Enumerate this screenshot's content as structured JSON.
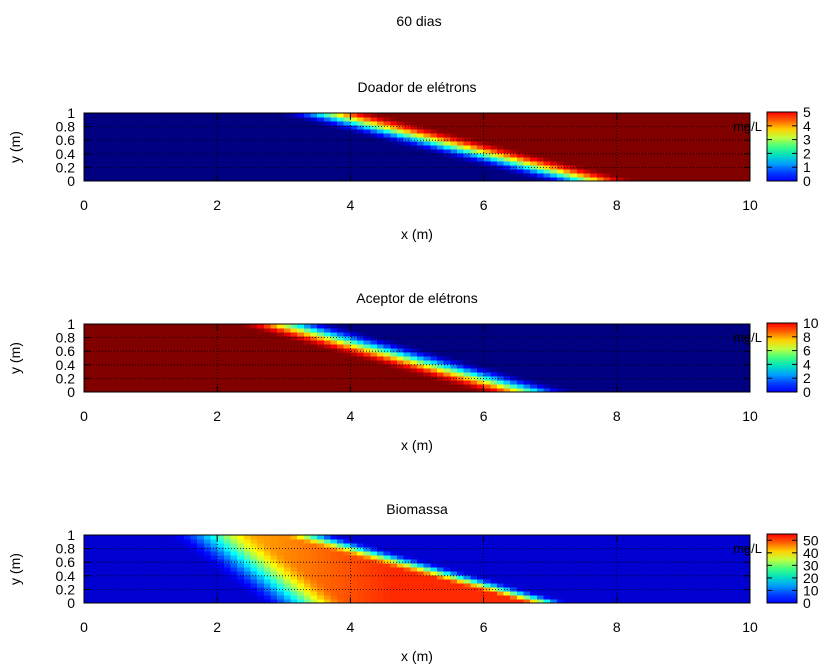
{
  "figure": {
    "title": "60 dias"
  },
  "chart_data": [
    {
      "type": "heatmap",
      "title": "Doador de elétrons",
      "xlabel": "x (m)",
      "ylabel": "y (m)",
      "xlim": [
        0,
        10
      ],
      "ylim": [
        0,
        1
      ],
      "xticks": [
        "0",
        "2",
        "4",
        "6",
        "8",
        "10"
      ],
      "yticks": [
        "0",
        "0.2",
        "0.4",
        "0.6",
        "0.8",
        "1"
      ],
      "colorbar": {
        "label": "mg/L",
        "range": [
          0,
          5
        ],
        "ticks": [
          "0",
          "1",
          "2",
          "3",
          "4",
          "5"
        ]
      },
      "grid": true,
      "front": {
        "x_at_top": 3.6,
        "x_at_bottom": 7.6,
        "width": 0.8,
        "high_low_side": "right"
      }
    },
    {
      "type": "heatmap",
      "title": "Aceptor de elétrons",
      "xlabel": "x (m)",
      "ylabel": "y (m)",
      "xlim": [
        0,
        10
      ],
      "ylim": [
        0,
        1
      ],
      "xticks": [
        "0",
        "2",
        "4",
        "6",
        "8",
        "10"
      ],
      "yticks": [
        "0",
        "0.2",
        "0.4",
        "0.6",
        "0.8",
        "1"
      ],
      "colorbar": {
        "label": "mg/L",
        "range": [
          0,
          10
        ],
        "ticks": [
          "0",
          "2",
          "4",
          "6",
          "8",
          "10"
        ]
      },
      "grid": true,
      "front": {
        "x_at_top": 3.0,
        "x_at_bottom": 6.7,
        "width": 0.8,
        "high_low_side": "left"
      }
    },
    {
      "type": "heatmap",
      "title": "Biomassa",
      "xlabel": "x (m)",
      "ylabel": "y (m)",
      "xlim": [
        0,
        10
      ],
      "ylim": [
        0,
        1
      ],
      "xticks": [
        "0",
        "2",
        "4",
        "6",
        "8",
        "10"
      ],
      "yticks": [
        "0",
        "0.2",
        "0.4",
        "0.6",
        "0.8",
        "1"
      ],
      "colorbar": {
        "label": "mg/L",
        "range": [
          0,
          55
        ],
        "ticks": [
          "0",
          "10",
          "20",
          "30",
          "40",
          "50"
        ]
      },
      "grid": true,
      "band": {
        "x_at_top": 3.3,
        "x_at_bottom": 6.9,
        "lower_edge_x_at_top": 1.8,
        "lower_edge_x_at_bottom": 3.2,
        "peak_value": 40
      }
    }
  ]
}
